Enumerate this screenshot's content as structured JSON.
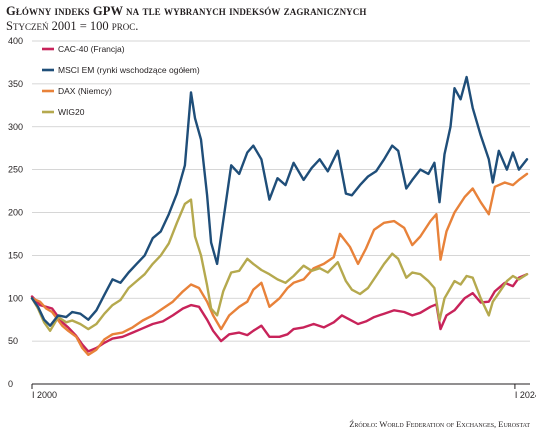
{
  "title": "Główny indeks GPW na tle wybranych indeksów zagranicznych",
  "subtitle": "Styczeń 2001 = 100 proc.",
  "source": "Źródło: World Federation of Exchanges, Eurostat",
  "chart_data": {
    "type": "line",
    "x_range": [
      2000.0,
      2024.75
    ],
    "ylim": [
      0,
      400
    ],
    "y_ticks": [
      "0",
      "50",
      "100",
      "150",
      "200",
      "250",
      "300",
      "350",
      "400"
    ],
    "x_ticks": [
      {
        "x": 2000.0,
        "label": "I 2000"
      },
      {
        "x": 2024.0,
        "label": "I 2024"
      }
    ],
    "grid": "horizontal",
    "legend_position": "top-left",
    "series": [
      {
        "name": "CAC-40 (Francja)",
        "color": "#c8235a",
        "x": [
          2000.0,
          2000.4,
          2000.7,
          2001.0,
          2001.5,
          2001.8,
          2002.2,
          2002.5,
          2002.8,
          2003.2,
          2003.6,
          2004.0,
          2004.5,
          2005.0,
          2005.5,
          2006.0,
          2006.5,
          2007.0,
          2007.5,
          2007.9,
          2008.3,
          2008.7,
          2009.0,
          2009.4,
          2009.8,
          2010.3,
          2010.7,
          2011.0,
          2011.4,
          2011.8,
          2012.3,
          2012.7,
          2013.0,
          2013.5,
          2014.0,
          2014.5,
          2015.0,
          2015.4,
          2015.8,
          2016.2,
          2016.6,
          2017.0,
          2017.5,
          2018.0,
          2018.5,
          2018.9,
          2019.3,
          2019.8,
          2020.1,
          2020.3,
          2020.6,
          2021.0,
          2021.5,
          2021.9,
          2022.3,
          2022.7,
          2023.0,
          2023.5,
          2023.9,
          2024.2,
          2024.6
        ],
        "values": [
          102,
          92,
          90,
          88,
          72,
          66,
          56,
          46,
          38,
          42,
          48,
          53,
          55,
          60,
          65,
          70,
          73,
          80,
          88,
          92,
          90,
          75,
          62,
          50,
          58,
          60,
          57,
          62,
          68,
          55,
          55,
          58,
          64,
          66,
          70,
          66,
          72,
          80,
          75,
          70,
          73,
          78,
          82,
          86,
          84,
          80,
          83,
          90,
          93,
          64,
          80,
          86,
          100,
          106,
          95,
          96,
          108,
          118,
          114,
          124,
          128
        ]
      },
      {
        "name": "MSCI EM (rynki wschodzące ogółem)",
        "color": "#1f4e79",
        "x": [
          2000.0,
          2000.3,
          2000.6,
          2000.9,
          2001.3,
          2001.7,
          2002.0,
          2002.4,
          2002.8,
          2003.2,
          2003.6,
          2004.0,
          2004.4,
          2004.8,
          2005.2,
          2005.6,
          2006.0,
          2006.4,
          2006.8,
          2007.2,
          2007.6,
          2007.9,
          2008.1,
          2008.4,
          2008.7,
          2008.9,
          2009.2,
          2009.5,
          2009.9,
          2010.3,
          2010.7,
          2011.0,
          2011.4,
          2011.8,
          2012.2,
          2012.6,
          2013.0,
          2013.5,
          2013.9,
          2014.3,
          2014.7,
          2015.2,
          2015.6,
          2015.9,
          2016.3,
          2016.7,
          2017.1,
          2017.5,
          2017.9,
          2018.2,
          2018.6,
          2018.9,
          2019.3,
          2019.7,
          2020.0,
          2020.25,
          2020.5,
          2020.8,
          2021.0,
          2021.3,
          2021.6,
          2021.9,
          2022.3,
          2022.7,
          2022.9,
          2023.2,
          2023.6,
          2023.9,
          2024.2,
          2024.6
        ],
        "values": [
          100,
          90,
          75,
          68,
          80,
          78,
          84,
          82,
          75,
          86,
          104,
          122,
          118,
          130,
          140,
          150,
          170,
          178,
          198,
          222,
          255,
          340,
          310,
          285,
          220,
          165,
          140,
          190,
          255,
          245,
          270,
          278,
          262,
          215,
          240,
          232,
          258,
          238,
          252,
          262,
          248,
          272,
          222,
          220,
          232,
          242,
          248,
          262,
          278,
          272,
          228,
          238,
          250,
          245,
          258,
          212,
          268,
          300,
          345,
          332,
          358,
          322,
          290,
          262,
          235,
          272,
          250,
          270,
          250,
          262
        ]
      },
      {
        "name": "DAX (Niemcy)",
        "color": "#e8823a",
        "x": [
          2000.0,
          2000.4,
          2000.7,
          2001.0,
          2001.5,
          2001.8,
          2002.2,
          2002.5,
          2002.8,
          2003.2,
          2003.6,
          2004.0,
          2004.5,
          2005.0,
          2005.5,
          2006.0,
          2006.5,
          2007.0,
          2007.5,
          2007.9,
          2008.3,
          2008.7,
          2009.0,
          2009.4,
          2009.8,
          2010.3,
          2010.7,
          2011.0,
          2011.4,
          2011.8,
          2012.3,
          2012.7,
          2013.0,
          2013.5,
          2014.0,
          2014.5,
          2015.0,
          2015.3,
          2015.8,
          2016.2,
          2016.6,
          2017.0,
          2017.5,
          2018.0,
          2018.5,
          2018.9,
          2019.3,
          2019.8,
          2020.1,
          2020.3,
          2020.6,
          2021.0,
          2021.5,
          2021.9,
          2022.3,
          2022.7,
          2023.0,
          2023.5,
          2023.9,
          2024.2,
          2024.6
        ],
        "values": [
          100,
          96,
          88,
          84,
          68,
          62,
          55,
          42,
          34,
          40,
          52,
          58,
          60,
          66,
          74,
          80,
          88,
          96,
          108,
          116,
          112,
          96,
          80,
          64,
          80,
          90,
          96,
          110,
          118,
          90,
          100,
          112,
          118,
          122,
          135,
          140,
          148,
          175,
          160,
          140,
          158,
          180,
          188,
          190,
          182,
          162,
          172,
          190,
          198,
          145,
          178,
          200,
          218,
          228,
          212,
          198,
          230,
          235,
          232,
          238,
          245
        ]
      },
      {
        "name": "WIG20",
        "color": "#b5a94e",
        "x": [
          2000.0,
          2000.3,
          2000.6,
          2000.9,
          2001.3,
          2001.7,
          2002.0,
          2002.4,
          2002.8,
          2003.2,
          2003.6,
          2004.0,
          2004.4,
          2004.8,
          2005.2,
          2005.6,
          2006.0,
          2006.4,
          2006.8,
          2007.2,
          2007.6,
          2007.9,
          2008.1,
          2008.4,
          2008.7,
          2008.9,
          2009.2,
          2009.5,
          2009.9,
          2010.3,
          2010.7,
          2011.0,
          2011.4,
          2011.8,
          2012.2,
          2012.6,
          2013.0,
          2013.5,
          2013.9,
          2014.3,
          2014.7,
          2015.2,
          2015.6,
          2015.9,
          2016.3,
          2016.7,
          2017.1,
          2017.5,
          2017.9,
          2018.2,
          2018.6,
          2018.9,
          2019.3,
          2019.7,
          2020.0,
          2020.25,
          2020.5,
          2020.8,
          2021.0,
          2021.3,
          2021.6,
          2021.9,
          2022.3,
          2022.7,
          2022.9,
          2023.2,
          2023.6,
          2023.9,
          2024.2,
          2024.6
        ],
        "values": [
          100,
          88,
          72,
          62,
          78,
          72,
          74,
          70,
          64,
          70,
          82,
          92,
          98,
          112,
          120,
          128,
          140,
          150,
          164,
          188,
          210,
          215,
          172,
          150,
          115,
          88,
          80,
          108,
          130,
          132,
          146,
          140,
          133,
          128,
          122,
          118,
          126,
          138,
          132,
          135,
          130,
          142,
          120,
          110,
          105,
          112,
          126,
          140,
          152,
          146,
          124,
          130,
          128,
          120,
          112,
          74,
          100,
          112,
          120,
          116,
          126,
          124,
          100,
          80,
          96,
          106,
          120,
          126,
          122,
          128
        ]
      }
    ]
  }
}
